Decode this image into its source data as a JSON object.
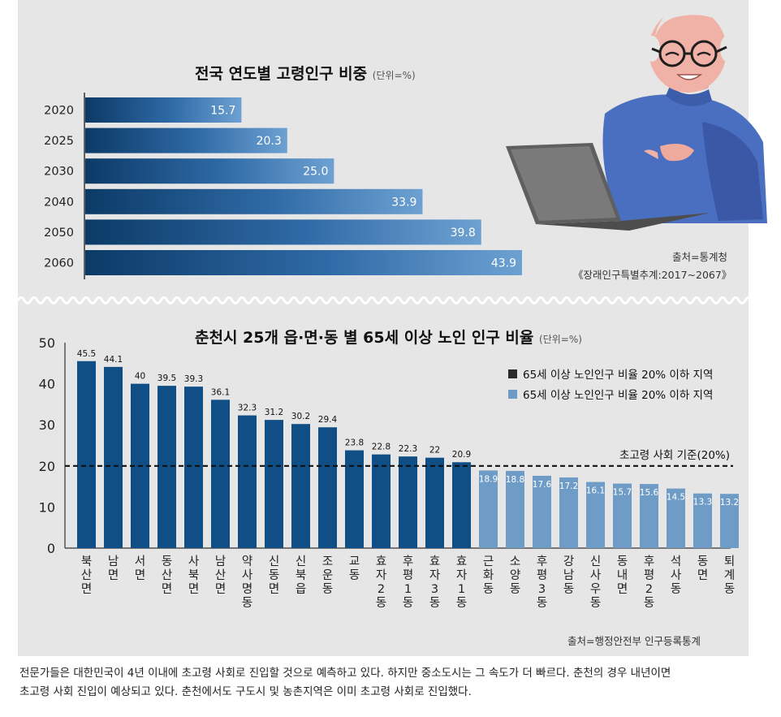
{
  "colors": {
    "dark_bar": "#0f4f86",
    "light_bar": "#6f9cc6",
    "threshold_line": "#111111"
  },
  "top": {
    "title": "전국 연도별 고령인구 비중",
    "unit": "(단위=%)",
    "source_line1": "출처=통계청",
    "source_line2": "《장래인구특별추계:2017~2067》"
  },
  "bottom": {
    "title": "춘천시 25개 읍·면·동 별 65세 이상 노인 인구 비율",
    "unit": "(단위=%)",
    "source": "출처=행정안전부 인구등록통계"
  },
  "caption": {
    "line1": "전문가들은 대한민국이 4년 이내에 초고령 사회로 진입할 것으로 예측하고 있다. 하지만 중소도시는 그 속도가 더 빠르다. 춘천의 경우 내년이면",
    "line2": "초고령 사회 진입이 예상되고 있다. 춘천에서도 구도시 및 농촌지역은 이미 초고령 사회로 진입했다."
  },
  "illustration": {
    "name": "elderly person using a laptop"
  },
  "chart_data": [
    {
      "type": "bar",
      "orientation": "horizontal",
      "title": "전국 연도별 고령인구 비중",
      "unit": "(단위=%)",
      "categories": [
        "2020",
        "2025",
        "2030",
        "2040",
        "2050",
        "2060"
      ],
      "values": [
        15.7,
        20.3,
        25.0,
        33.9,
        39.8,
        43.9
      ],
      "value_labels": [
        "15.7",
        "20.3",
        "25.0",
        "33.9",
        "39.8",
        "43.9"
      ],
      "xlim": [
        0,
        43.9
      ]
    },
    {
      "type": "bar",
      "title": "춘천시 25개 읍·면·동 별 65세 이상 노인 인구 비율",
      "unit": "(단위=%)",
      "categories": [
        "북산면",
        "남면",
        "서면",
        "동산면",
        "사북면",
        "남산면",
        "약사명동",
        "신동면",
        "신북읍",
        "조운동",
        "교동",
        "효자2동",
        "후평1동",
        "효자3동",
        "효자1동",
        "근화동",
        "소양동",
        "후평3동",
        "강남동",
        "신사우동",
        "동내면",
        "후평2동",
        "석사동",
        "동면",
        "퇴계동"
      ],
      "values": [
        45.5,
        44.1,
        40,
        39.5,
        39.3,
        36.1,
        32.3,
        31.2,
        30.2,
        29.4,
        23.8,
        22.8,
        22.3,
        22,
        20.9,
        18.9,
        18.8,
        17.6,
        17.2,
        16.1,
        15.7,
        15.6,
        14.5,
        13.3,
        13.2
      ],
      "value_labels": [
        "45.5",
        "44.1",
        "40",
        "39.5",
        "39.3",
        "36.1",
        "32.3",
        "31.2",
        "30.2",
        "29.4",
        "23.8",
        "22.8",
        "22.3",
        "22",
        "20.9",
        "18.9",
        "18.8",
        "17.6",
        "17.2",
        "16.1",
        "15.7",
        "15.6",
        "14.5",
        "13.3",
        "13.2"
      ],
      "ylim": [
        0,
        50
      ],
      "yticks": [
        "0",
        "10",
        "20",
        "30",
        "40",
        "50"
      ],
      "threshold": 20,
      "threshold_label": "초고령 사회 기준(20%)",
      "legend": [
        {
          "label": "65세 이상 노인인구 비율 20% 이하 지역",
          "color": "#2a2a2a"
        },
        {
          "label": "65세 이상 노인인구 비율 20% 이하 지역",
          "color": "#6f9cc6"
        }
      ],
      "legend_position": "top-right"
    }
  ]
}
